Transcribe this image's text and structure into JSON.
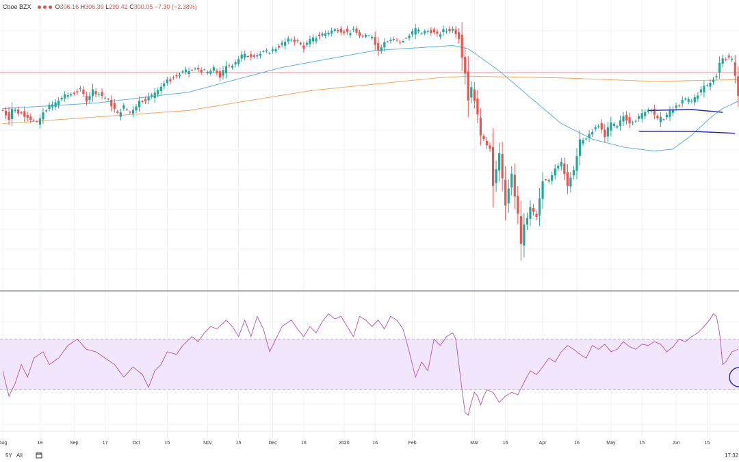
{
  "legend": {
    "source": "Cboe BZX",
    "open_label": "O",
    "open": "306.16",
    "high_label": "H",
    "high": "306.39",
    "low_label": "L",
    "low": "299.42",
    "close_label": "C",
    "close": "300.05",
    "change": "−7.30 (−2.38%)"
  },
  "toolbar": {
    "range_5y": "5Y",
    "range_all": "All",
    "time": "17:32:"
  },
  "colors": {
    "up": "#26a69a",
    "down": "#ef5350",
    "ma_fast": "#5ab0e0",
    "ma_slow": "#f2a560",
    "ref_line": "#d98c8c",
    "rsi_line": "#b95fb5",
    "rsi_band": "#f2e6fd",
    "channel": "#2a2ea8",
    "grid": "#eef0f3"
  },
  "chart_data": {
    "type": "candlestick",
    "x_ticks": [
      "Aug",
      "19",
      "Sep",
      "17",
      "Oct",
      "15",
      "Nov",
      "15",
      "Dec",
      "16",
      "2020",
      "16",
      "Feb",
      "Mar",
      "16",
      "Apr",
      "16",
      "May",
      "15",
      "Jun",
      "15"
    ],
    "y_scale": "log",
    "ylim": [
      210,
      350
    ],
    "reference_price": 312,
    "markers": [
      {
        "key": "2019-08",
        "date": "2019-08-01"
      },
      {
        "key": "2019-08-19",
        "date": "2019-08-19"
      },
      {
        "key": "2019-09",
        "date": "2019-09-03"
      },
      {
        "key": "2019-09-17",
        "date": "2019-09-17"
      },
      {
        "key": "2019-10",
        "date": "2019-10-01"
      },
      {
        "key": "2019-10-15",
        "date": "2019-10-15"
      },
      {
        "key": "2019-11",
        "date": "2019-11-01"
      },
      {
        "key": "2019-11-15",
        "date": "2019-11-15"
      },
      {
        "key": "2019-12",
        "date": "2019-12-02"
      },
      {
        "key": "2019-12-16",
        "date": "2019-12-16"
      },
      {
        "key": "2020-01",
        "date": "2020-01-02"
      },
      {
        "key": "2020-01-16",
        "date": "2020-01-16"
      },
      {
        "key": "2020-02",
        "date": "2020-02-03"
      },
      {
        "key": "2020-02-24",
        "date": "2020-02-24"
      },
      {
        "key": "2020-03",
        "date": "2020-03-02"
      },
      {
        "key": "2020-03-16",
        "date": "2020-03-16"
      },
      {
        "key": "2020-03-23",
        "date": "2020-03-23"
      },
      {
        "key": "2020-04",
        "date": "2020-04-01"
      },
      {
        "key": "2020-04-16",
        "date": "2020-04-16"
      },
      {
        "key": "2020-05",
        "date": "2020-05-01"
      },
      {
        "key": "2020-05-15",
        "date": "2020-05-15"
      },
      {
        "key": "2020-06",
        "date": "2020-06-01"
      },
      {
        "key": "2020-06-08",
        "date": "2020-06-08"
      },
      {
        "key": "2020-06-11",
        "date": "2020-06-11"
      },
      {
        "key": "2020-06-15",
        "date": "2020-06-15"
      }
    ],
    "close_anchors": [
      [
        0,
        291
      ],
      [
        2,
        287
      ],
      [
        3,
        292
      ],
      [
        5,
        290
      ],
      [
        8,
        288
      ],
      [
        11,
        284
      ],
      [
        14,
        292
      ],
      [
        17,
        295
      ],
      [
        19,
        298
      ],
      [
        22,
        300
      ],
      [
        25,
        302
      ],
      [
        27,
        297
      ],
      [
        29,
        302
      ],
      [
        31,
        300
      ],
      [
        33,
        298
      ],
      [
        35,
        294
      ],
      [
        37,
        289
      ],
      [
        39,
        293
      ],
      [
        41,
        290
      ],
      [
        44,
        296
      ],
      [
        46,
        297
      ],
      [
        48,
        299
      ],
      [
        50,
        303
      ],
      [
        52,
        306
      ],
      [
        55,
        309
      ],
      [
        58,
        312
      ],
      [
        60,
        313
      ],
      [
        63,
        314
      ],
      [
        66,
        312
      ],
      [
        68,
        314
      ],
      [
        70,
        310
      ],
      [
        72,
        315
      ],
      [
        74,
        317
      ],
      [
        77,
        322
      ],
      [
        80,
        322
      ],
      [
        83,
        323
      ],
      [
        87,
        325
      ],
      [
        90,
        329
      ],
      [
        93,
        332
      ],
      [
        95,
        330
      ],
      [
        97,
        327
      ],
      [
        99,
        331
      ],
      [
        101,
        333
      ],
      [
        103,
        335
      ],
      [
        106,
        337
      ],
      [
        108,
        338
      ],
      [
        111,
        336
      ],
      [
        113,
        337
      ],
      [
        116,
        333
      ],
      [
        119,
        334
      ],
      [
        121,
        325
      ],
      [
        123,
        331
      ],
      [
        126,
        332
      ],
      [
        128,
        330
      ],
      [
        131,
        334
      ],
      [
        133,
        338
      ],
      [
        135,
        336
      ],
      [
        138,
        337
      ],
      [
        140,
        334
      ],
      [
        142,
        337
      ],
      [
        145,
        338
      ],
      [
        146,
        336
      ],
      [
        147,
        333
      ],
      [
        148,
        322
      ],
      [
        149,
        312
      ],
      [
        150,
        297
      ],
      [
        151,
        304
      ],
      [
        152,
        297
      ],
      [
        153,
        288
      ],
      [
        154,
        279
      ],
      [
        155,
        275
      ],
      [
        157,
        272
      ],
      [
        158,
        254
      ],
      [
        160,
        268
      ],
      [
        162,
        245
      ],
      [
        164,
        258
      ],
      [
        166,
        240
      ],
      [
        167,
        228
      ],
      [
        168,
        235
      ],
      [
        170,
        243
      ],
      [
        172,
        239
      ],
      [
        174,
        255
      ],
      [
        176,
        256
      ],
      [
        178,
        262
      ],
      [
        180,
        265
      ],
      [
        182,
        254
      ],
      [
        184,
        260
      ],
      [
        186,
        275
      ],
      [
        188,
        276
      ],
      [
        190,
        280
      ],
      [
        192,
        283
      ],
      [
        194,
        278
      ],
      [
        196,
        284
      ],
      [
        198,
        282
      ],
      [
        200,
        288
      ],
      [
        202,
        285
      ],
      [
        205,
        287
      ],
      [
        207,
        291
      ],
      [
        209,
        292
      ],
      [
        211,
        286
      ],
      [
        213,
        287
      ],
      [
        215,
        290
      ],
      [
        217,
        293
      ],
      [
        220,
        297
      ],
      [
        222,
        296
      ],
      [
        224,
        300
      ],
      [
        226,
        304
      ],
      [
        228,
        306
      ],
      [
        230,
        311
      ],
      [
        231,
        318
      ],
      [
        232,
        320
      ],
      [
        234,
        321
      ],
      [
        235,
        319
      ],
      [
        236,
        309
      ],
      [
        237,
        300
      ]
    ],
    "candles_note": "approximate daily OHLC derived from close anchors",
    "ma_fast_anchors": [
      [
        0,
        292
      ],
      [
        30,
        295
      ],
      [
        60,
        301
      ],
      [
        90,
        315
      ],
      [
        120,
        325
      ],
      [
        145,
        328
      ],
      [
        150,
        326
      ],
      [
        160,
        313
      ],
      [
        170,
        298
      ],
      [
        180,
        284
      ],
      [
        190,
        276
      ],
      [
        200,
        272
      ],
      [
        210,
        270
      ],
      [
        216,
        271
      ],
      [
        222,
        278
      ],
      [
        228,
        287
      ],
      [
        232,
        292
      ],
      [
        237,
        296
      ]
    ],
    "ma_slow_anchors": [
      [
        0,
        284
      ],
      [
        60,
        291
      ],
      [
        100,
        302
      ],
      [
        140,
        309
      ],
      [
        150,
        310
      ],
      [
        180,
        309
      ],
      [
        210,
        307
      ],
      [
        237,
        308
      ]
    ],
    "channel_upper": [
      [
        208,
        291
      ],
      [
        222,
        291.5
      ],
      [
        232,
        290
      ]
    ],
    "channel_lower": [
      [
        205,
        280
      ],
      [
        222,
        280
      ],
      [
        236,
        279
      ]
    ],
    "rsi": {
      "ylim": [
        0,
        100
      ],
      "band": [
        30,
        70
      ],
      "anchors": [
        [
          0,
          45
        ],
        [
          2,
          25
        ],
        [
          4,
          35
        ],
        [
          6,
          50
        ],
        [
          8,
          40
        ],
        [
          10,
          55
        ],
        [
          13,
          60
        ],
        [
          15,
          50
        ],
        [
          18,
          55
        ],
        [
          21,
          65
        ],
        [
          24,
          70
        ],
        [
          27,
          62
        ],
        [
          30,
          60
        ],
        [
          33,
          55
        ],
        [
          36,
          50
        ],
        [
          39,
          40
        ],
        [
          42,
          48
        ],
        [
          45,
          42
        ],
        [
          47,
          32
        ],
        [
          49,
          45
        ],
        [
          51,
          50
        ],
        [
          53,
          60
        ],
        [
          56,
          58
        ],
        [
          58,
          65
        ],
        [
          61,
          72
        ],
        [
          63,
          68
        ],
        [
          65,
          75
        ],
        [
          67,
          80
        ],
        [
          69,
          78
        ],
        [
          72,
          85
        ],
        [
          74,
          80
        ],
        [
          76,
          72
        ],
        [
          78,
          85
        ],
        [
          80,
          72
        ],
        [
          82,
          88
        ],
        [
          84,
          78
        ],
        [
          86,
          60
        ],
        [
          88,
          70
        ],
        [
          90,
          80
        ],
        [
          93,
          85
        ],
        [
          95,
          78
        ],
        [
          97,
          72
        ],
        [
          99,
          80
        ],
        [
          101,
          75
        ],
        [
          103,
          84
        ],
        [
          105,
          90
        ],
        [
          107,
          86
        ],
        [
          109,
          88
        ],
        [
          111,
          80
        ],
        [
          113,
          72
        ],
        [
          115,
          88
        ],
        [
          117,
          85
        ],
        [
          119,
          80
        ],
        [
          121,
          85
        ],
        [
          123,
          78
        ],
        [
          125,
          88
        ],
        [
          127,
          85
        ],
        [
          129,
          78
        ],
        [
          131,
          60
        ],
        [
          132,
          50
        ],
        [
          133,
          40
        ],
        [
          135,
          52
        ],
        [
          137,
          45
        ],
        [
          139,
          70
        ],
        [
          141,
          65
        ],
        [
          143,
          72
        ],
        [
          145,
          75
        ],
        [
          146,
          70
        ],
        [
          147,
          50
        ],
        [
          148,
          30
        ],
        [
          149,
          12
        ],
        [
          150,
          10
        ],
        [
          151,
          20
        ],
        [
          152,
          28
        ],
        [
          153,
          25
        ],
        [
          154,
          18
        ],
        [
          155,
          25
        ],
        [
          156,
          30
        ],
        [
          158,
          28
        ],
        [
          160,
          20
        ],
        [
          162,
          25
        ],
        [
          164,
          28
        ],
        [
          166,
          26
        ],
        [
          168,
          36
        ],
        [
          170,
          45
        ],
        [
          172,
          42
        ],
        [
          174,
          48
        ],
        [
          176,
          55
        ],
        [
          178,
          52
        ],
        [
          180,
          60
        ],
        [
          182,
          65
        ],
        [
          184,
          62
        ],
        [
          186,
          58
        ],
        [
          188,
          55
        ],
        [
          190,
          65
        ],
        [
          192,
          62
        ],
        [
          194,
          66
        ],
        [
          196,
          60
        ],
        [
          198,
          62
        ],
        [
          200,
          68
        ],
        [
          202,
          64
        ],
        [
          204,
          62
        ],
        [
          206,
          66
        ],
        [
          208,
          65
        ],
        [
          210,
          68
        ],
        [
          212,
          66
        ],
        [
          214,
          60
        ],
        [
          216,
          64
        ],
        [
          218,
          70
        ],
        [
          220,
          68
        ],
        [
          222,
          72
        ],
        [
          224,
          75
        ],
        [
          226,
          80
        ],
        [
          228,
          86
        ],
        [
          229,
          90
        ],
        [
          230,
          88
        ],
        [
          231,
          75
        ],
        [
          232,
          50
        ],
        [
          233,
          52
        ],
        [
          235,
          60
        ],
        [
          237,
          62
        ]
      ]
    }
  }
}
